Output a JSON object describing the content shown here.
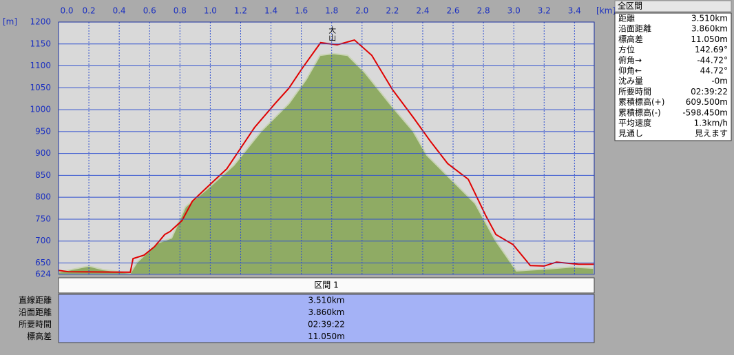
{
  "chart_data": {
    "type": "profile",
    "y_unit": "[m]",
    "x_unit": "[km]",
    "xlim": [
      0,
      3.53
    ],
    "ylim": [
      624,
      1200
    ],
    "xticks": [
      {
        "value": 0,
        "label": "0.0"
      },
      0.2,
      0.4,
      0.6,
      0.8,
      {
        "value": 1,
        "label": "1.0"
      },
      1.2,
      1.4,
      1.6,
      1.8,
      {
        "value": 2,
        "label": "2.0"
      },
      2.2,
      2.4,
      2.6,
      2.8,
      {
        "value": 3,
        "label": "3.0"
      },
      3.2,
      3.4
    ],
    "yticks": [
      624,
      650,
      700,
      750,
      800,
      850,
      900,
      950,
      1000,
      1050,
      1100,
      1150,
      1200
    ],
    "grid": true,
    "annotation": {
      "text": "大山",
      "x": 1.8
    },
    "series": [
      {
        "kind": "area",
        "color": "#8fab64",
        "x": [
          0,
          0.2,
          0.291,
          0.473,
          0.518,
          0.655,
          0.745,
          0.836,
          0.973,
          1.155,
          1.336,
          1.518,
          1.632,
          1.723,
          1.814,
          1.905,
          2.018,
          2.2,
          2.336,
          2.427,
          2.609,
          2.745,
          2.882,
          3.018,
          3.245,
          3.382,
          3.527
        ],
        "values": [
          629,
          643,
          635,
          627,
          652,
          696,
          707,
          778,
          817,
          873,
          951,
          1014,
          1069,
          1124,
          1128,
          1124,
          1085,
          1006,
          951,
          896,
          833,
          786,
          700,
          632,
          637,
          641,
          638
        ]
      },
      {
        "kind": "line",
        "color": "#e00000",
        "x": [
          0,
          0.064,
          0.473,
          0.491,
          0.564,
          0.632,
          0.7,
          0.736,
          0.814,
          0.882,
          0.973,
          1.109,
          1.2,
          1.291,
          1.427,
          1.518,
          1.609,
          1.727,
          1.836,
          1.95,
          2.064,
          2.2,
          2.336,
          2.45,
          2.564,
          2.7,
          2.814,
          2.882,
          2.995,
          3.109,
          3.2,
          3.282,
          3.427,
          3.527
        ],
        "values": [
          633,
          630,
          629,
          660,
          668,
          687,
          715,
          722,
          747,
          791,
          821,
          865,
          912,
          959,
          1014,
          1049,
          1096,
          1153,
          1148,
          1159,
          1124,
          1046,
          983,
          928,
          877,
          841,
          759,
          715,
          692,
          644,
          643,
          652,
          647,
          647
        ]
      }
    ]
  },
  "summary_panel": {
    "title": "全区間",
    "rows": [
      [
        "距離",
        "3.510km"
      ],
      [
        "沿面距離",
        "3.860km"
      ],
      [
        "標高差",
        "11.050m"
      ],
      [
        "方位",
        "142.69°"
      ],
      [
        "俯角→",
        "-44.72°"
      ],
      [
        "仰角←",
        "44.72°"
      ],
      [
        "沈み量",
        "-0m"
      ],
      [
        "所要時間",
        "02:39:22"
      ],
      [
        "累積標高(+)",
        "609.500m"
      ],
      [
        "累積標高(-)",
        "-598.450m"
      ],
      [
        "平均速度",
        "1.3km/h"
      ],
      [
        "見通し",
        "見えます"
      ]
    ]
  },
  "section_table": {
    "header": "区間 1",
    "rows": [
      [
        "直線距離",
        "3.510km"
      ],
      [
        "沿面距離",
        "3.860km"
      ],
      [
        "所要時間",
        "02:39:22"
      ],
      [
        "標高差",
        "11.050m"
      ]
    ]
  }
}
